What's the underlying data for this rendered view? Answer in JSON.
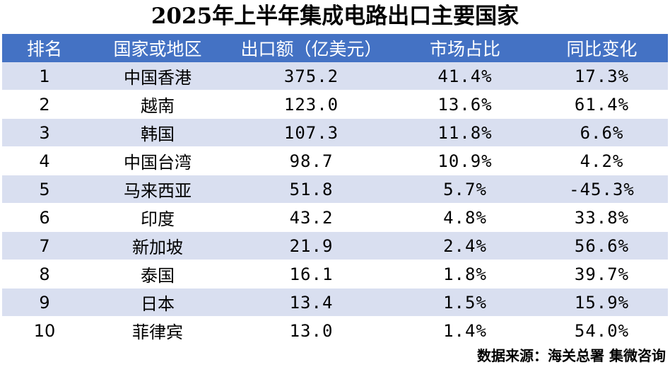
{
  "title": "2025年上半年集成电路出口主要国家",
  "headers": {
    "rank": "排名",
    "country": "国家或地区",
    "export": "出口额（亿美元）",
    "share": "市场占比",
    "yoy": "同比变化"
  },
  "rows": [
    {
      "rank": "1",
      "country": "中国香港",
      "export": "375.2",
      "share": "41.4%",
      "yoy": "17.3%"
    },
    {
      "rank": "2",
      "country": "越南",
      "export": "123.0",
      "share": "13.6%",
      "yoy": "61.4%"
    },
    {
      "rank": "3",
      "country": "韩国",
      "export": "107.3",
      "share": "11.8%",
      "yoy": "6.6%"
    },
    {
      "rank": "4",
      "country": "中国台湾",
      "export": "98.7",
      "share": "10.9%",
      "yoy": "4.2%"
    },
    {
      "rank": "5",
      "country": "马来西亚",
      "export": "51.8",
      "share": "5.7%",
      "yoy": "-45.3%"
    },
    {
      "rank": "6",
      "country": "印度",
      "export": "43.2",
      "share": "4.8%",
      "yoy": "33.8%"
    },
    {
      "rank": "7",
      "country": "新加坡",
      "export": "21.9",
      "share": "2.4%",
      "yoy": "56.6%"
    },
    {
      "rank": "8",
      "country": "泰国",
      "export": "16.1",
      "share": "1.8%",
      "yoy": "39.7%"
    },
    {
      "rank": "9",
      "country": "日本",
      "export": "13.4",
      "share": "1.5%",
      "yoy": "15.9%"
    },
    {
      "rank": "10",
      "country": "菲律宾",
      "export": "13.0",
      "share": "1.4%",
      "yoy": "54.0%"
    }
  ],
  "source": "数据来源：海关总署 集微咨询",
  "colors": {
    "header_bg": "#4472c4",
    "stripe": "#d9dff0"
  }
}
